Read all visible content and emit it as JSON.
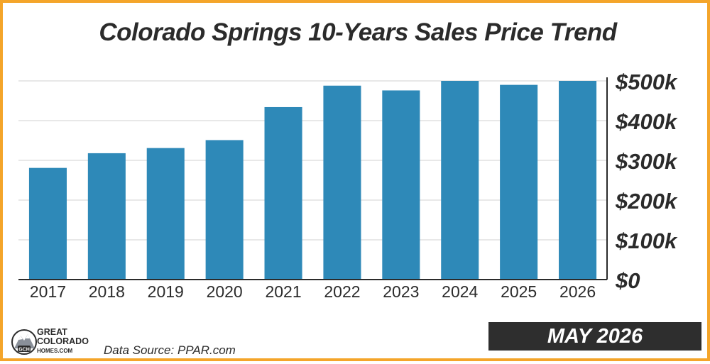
{
  "chart_data": {
    "type": "bar",
    "title": "Colorado Springs 10-Years Sales Price Trend",
    "categories": [
      "2017",
      "2018",
      "2019",
      "2020",
      "2021",
      "2022",
      "2023",
      "2024",
      "2025",
      "2026"
    ],
    "values": [
      281000,
      318000,
      331000,
      351000,
      434000,
      488000,
      476000,
      500000,
      490000,
      500000
    ],
    "ylim": [
      0,
      500000
    ],
    "yticks": [
      0,
      100000,
      200000,
      300000,
      400000,
      500000
    ],
    "ytick_labels": [
      "$0",
      "$100k",
      "$200k",
      "$300k",
      "$400k",
      "$500k"
    ],
    "yaxis_position": "right",
    "grid": true,
    "bar_color": "#2e89b8"
  },
  "logo": {
    "lines": [
      "GREAT",
      "COLORADO",
      "HOMES.COM"
    ],
    "badge": "GCH"
  },
  "footer": {
    "source": "Data Source: PPAR.com",
    "date": "MAY 2026"
  },
  "colors": {
    "border": "#f4a52a",
    "text": "#2b2b2b",
    "badge_bg": "#2e2e2e"
  }
}
